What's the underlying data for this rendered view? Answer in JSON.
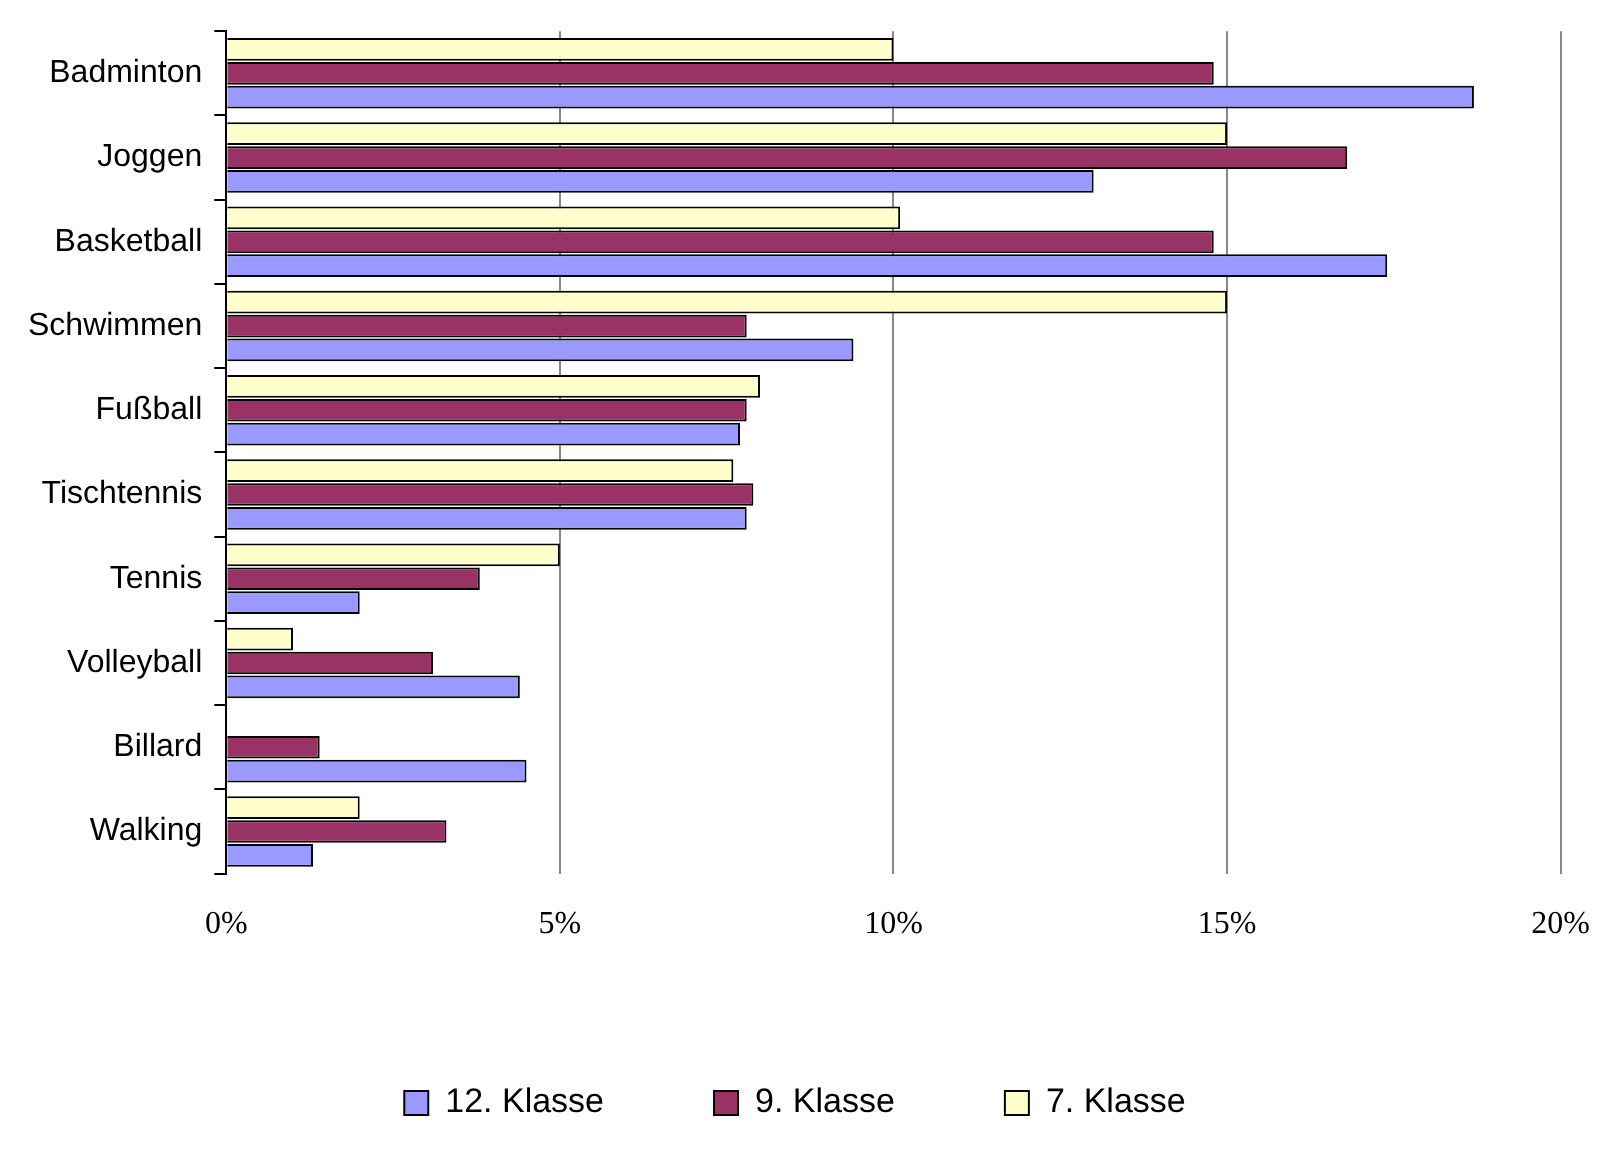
{
  "chart_data": {
    "type": "bar",
    "orientation": "horizontal",
    "categories": [
      "Badminton",
      "Joggen",
      "Basketball",
      "Schwimmen",
      "Fußball",
      "Tischtennis",
      "Tennis",
      "Volleyball",
      "Billard",
      "Walking"
    ],
    "series": [
      {
        "name": "12. Klasse",
        "color": "#9999ff",
        "values": [
          18.7,
          13.0,
          17.4,
          9.4,
          7.7,
          7.8,
          2.0,
          4.4,
          4.5,
          1.3
        ]
      },
      {
        "name": "9. Klasse",
        "color": "#993366",
        "values": [
          14.8,
          16.8,
          14.8,
          7.8,
          7.8,
          7.9,
          3.8,
          3.1,
          1.4,
          3.3
        ]
      },
      {
        "name": "7. Klasse",
        "color": "#ffffcc",
        "values": [
          10.0,
          15.0,
          10.1,
          15.0,
          8.0,
          7.6,
          5.0,
          1.0,
          0,
          2.0
        ]
      }
    ],
    "xlim": [
      0,
      20
    ],
    "xticks": [
      {
        "value": 0,
        "label": "0%"
      },
      {
        "value": 5,
        "label": "5%"
      },
      {
        "value": 10,
        "label": "10%"
      },
      {
        "value": 15,
        "label": "15%"
      },
      {
        "value": 20,
        "label": "20%"
      }
    ],
    "grid": "x",
    "legend": "bottom"
  }
}
